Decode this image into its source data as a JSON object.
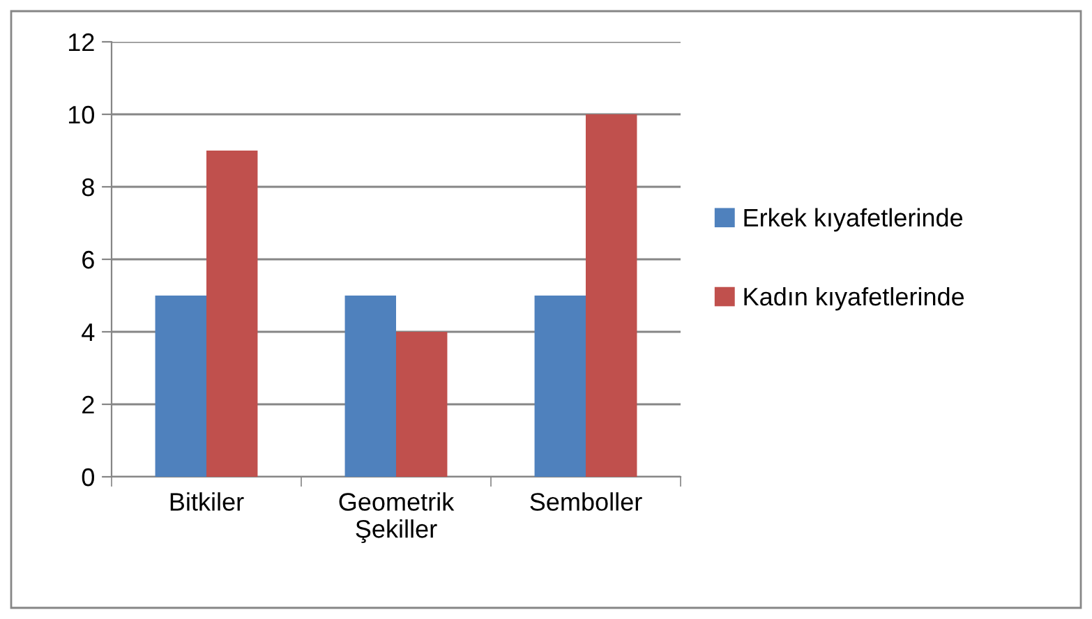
{
  "chart_data": {
    "type": "bar",
    "categories": [
      "Bitkiler",
      "Geometrik\nŞekiller",
      "Semboller"
    ],
    "series": [
      {
        "name": "Erkek kıyafetlerinde",
        "color": "#4f81bd",
        "values": [
          5,
          5,
          5
        ]
      },
      {
        "name": "Kadın kıyafetlerinde",
        "color": "#c0504d",
        "values": [
          9,
          4,
          10
        ]
      }
    ],
    "ylim": [
      0,
      12
    ],
    "yticks": [
      0,
      2,
      4,
      6,
      8,
      10,
      12
    ],
    "grid": "y",
    "legend": "right"
  }
}
